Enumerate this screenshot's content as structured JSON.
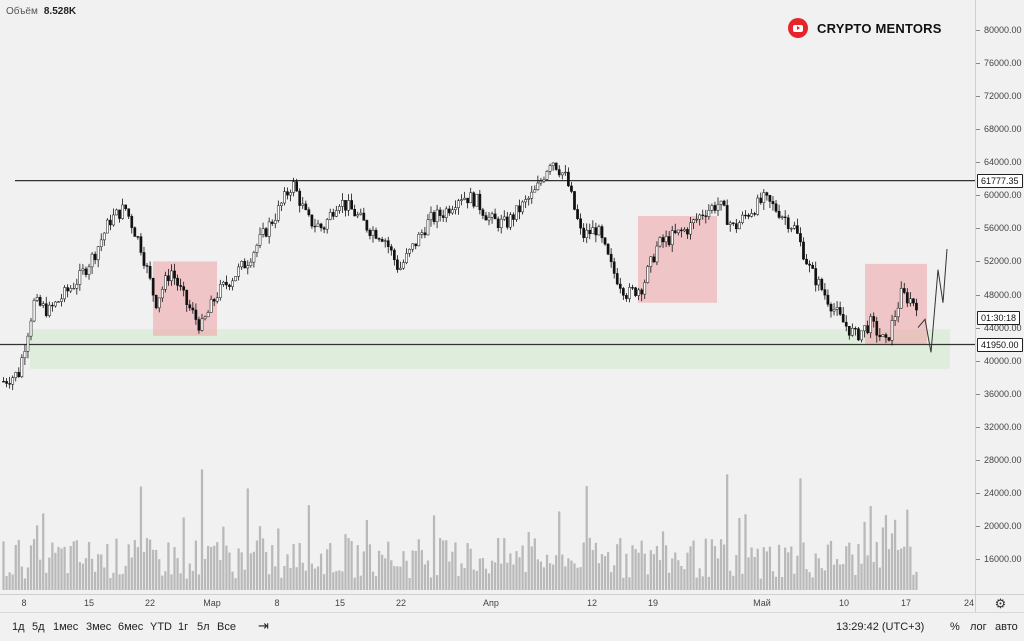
{
  "volume": {
    "label": "Объём",
    "value": "8.528K"
  },
  "watermark": {
    "text": "CRYPTO MENTORS",
    "icon": "youtube-icon",
    "icon_color": "#e8242b"
  },
  "price_axis": {
    "ticks": [
      "80000.00",
      "76000.00",
      "72000.00",
      "68000.00",
      "64000.00",
      "60000.00",
      "56000.00",
      "52000.00",
      "48000.00",
      "44000.00",
      "40000.00",
      "36000.00",
      "32000.00",
      "28000.00",
      "24000.00",
      "20000.00",
      "16000.00"
    ],
    "labels": [
      {
        "text": "61777.35",
        "style": "outline"
      },
      {
        "text": "01:30:18",
        "style": "outline"
      },
      {
        "text": "41950.00",
        "style": "outline"
      }
    ]
  },
  "time_axis": {
    "ticks": [
      "8",
      "15",
      "22",
      "Мар",
      "8",
      "15",
      "22",
      "Апр",
      "12",
      "19",
      "Май",
      "10",
      "17",
      "24"
    ]
  },
  "toolbar": {
    "timeframes": [
      "1д",
      "5д",
      "1мес",
      "3мес",
      "6мес",
      "YTD",
      "1г",
      "5л",
      "Все"
    ],
    "goto_icon": "goto-date-icon",
    "clock": "13:29:42 (UTC+3)",
    "percent": "%",
    "log": "лог",
    "auto": "авто"
  },
  "settings_icon": "gear-icon",
  "chart_data": {
    "type": "candlestick",
    "title": "",
    "ylim": [
      36000,
      82000
    ],
    "levels": [
      61777.35,
      41950.0
    ],
    "support_zone": [
      39000,
      43800
    ],
    "highlight_boxes": [
      {
        "from": "22",
        "to": "Мар",
        "low": 43000,
        "high": 52000
      },
      {
        "from": "19",
        "to": "19+",
        "low": 47000,
        "high": 57500
      },
      {
        "from": "10",
        "to": "17",
        "low": 42000,
        "high": 51700
      }
    ],
    "price_path": [
      37500,
      38500,
      47000,
      46000,
      48000,
      50000,
      53000,
      57000,
      58500,
      54000,
      47000,
      51000,
      47000,
      44000,
      48000,
      50000,
      52000,
      55000,
      58000,
      61500,
      57000,
      56000,
      59500,
      58000,
      56000,
      55000,
      51000,
      54000,
      57000,
      58000,
      60000,
      59500,
      57000,
      56500,
      58500,
      60500,
      64500,
      62000,
      55000,
      56000,
      51000,
      48000,
      49000,
      54000,
      55000,
      56000,
      58000,
      59000,
      56000,
      58000,
      59500,
      58000,
      56000,
      51000,
      48000,
      45000,
      43000,
      44500,
      42000,
      48000,
      47000,
      53000
    ],
    "volume_ylim": [
      12000,
      32000
    ]
  }
}
